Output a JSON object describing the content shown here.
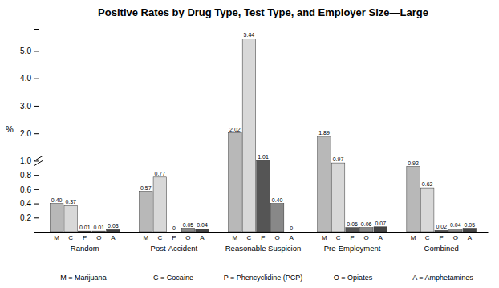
{
  "chart_data": {
    "type": "bar",
    "title": "Positive Rates by Drug Type, Test Type, and Employer Size—Large",
    "ylabel": "%",
    "categories": [
      "Random",
      "Post-Accident",
      "Reasonable Suspicion",
      "Pre-Employment",
      "Combined"
    ],
    "series": [
      {
        "name": "M",
        "color": "#b8b8b8",
        "values": [
          0.4,
          0.57,
          2.02,
          1.89,
          0.92
        ],
        "value_labels": [
          "0.40",
          "0.57",
          "2.02",
          "1.89",
          "0.92"
        ]
      },
      {
        "name": "C",
        "color": "#d8d8d8",
        "values": [
          0.37,
          0.77,
          5.44,
          0.97,
          0.62
        ],
        "value_labels": [
          "0.37",
          "0.77",
          "5.44",
          "0.97",
          "0.62"
        ]
      },
      {
        "name": "P",
        "color": "#555555",
        "values": [
          0.01,
          0.0,
          1.01,
          0.06,
          0.02
        ],
        "value_labels": [
          "0.01",
          "0",
          "1.01",
          "0.06",
          "0.02"
        ]
      },
      {
        "name": "O",
        "color": "#888888",
        "values": [
          0.01,
          0.05,
          0.4,
          0.06,
          0.04
        ],
        "value_labels": [
          "0.01",
          "0.05",
          "0.40",
          "0.06",
          "0.04"
        ]
      },
      {
        "name": "A",
        "color": "#444444",
        "values": [
          0.03,
          0.04,
          0.0,
          0.07,
          0.05
        ],
        "value_labels": [
          "0.03",
          "0.04",
          "0",
          "0.07",
          "0.05"
        ]
      }
    ],
    "ylim": [
      0,
      5.8
    ],
    "yticks": [
      0.2,
      0.4,
      0.6,
      0.8,
      {
        "value": 1.0,
        "label": "1.0"
      },
      {
        "value": 2.0,
        "label": "2.0"
      },
      {
        "value": 3.0,
        "label": "3.0"
      },
      {
        "value": 4.0,
        "label": "4.0"
      },
      {
        "value": 5.0,
        "label": "5.0"
      }
    ],
    "grid": false,
    "data_labels": true,
    "annotations": [
      "M = Marijuana",
      "C = Cocaine",
      "P = Phencyclidine (PCP)",
      "O = Opiates",
      "A = Amphetamines"
    ]
  }
}
